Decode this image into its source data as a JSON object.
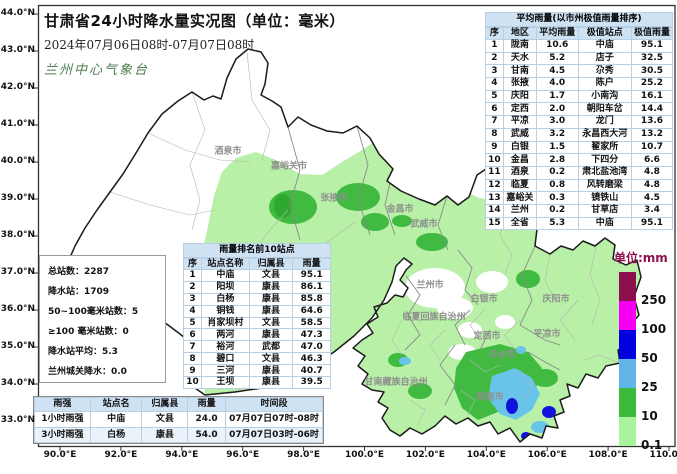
{
  "header": {
    "title": "甘肃省24小时降水量实况图（单位：毫米）",
    "date_range": "2024年07月06日08时-07月07日08时",
    "agency": "兰州中心气象台"
  },
  "avg_table": {
    "title": "平均雨量(以市州极值雨量排序)",
    "columns": [
      "序",
      "地区",
      "平均雨量",
      "极值站点",
      "极值雨量"
    ],
    "rows": [
      [
        "1",
        "陇南",
        "10.6",
        "中庙",
        "95.1"
      ],
      [
        "2",
        "天水",
        "5.2",
        "店子",
        "32.5"
      ],
      [
        "3",
        "甘南",
        "4.5",
        "尕秀",
        "30.5"
      ],
      [
        "4",
        "张掖",
        "4.0",
        "陈户",
        "25.2"
      ],
      [
        "5",
        "庆阳",
        "1.7",
        "小南沟",
        "16.1"
      ],
      [
        "6",
        "定西",
        "2.0",
        "朝阳车岔",
        "14.4"
      ],
      [
        "7",
        "平凉",
        "3.0",
        "龙门",
        "13.6"
      ],
      [
        "8",
        "武威",
        "3.2",
        "永昌西大河",
        "13.2"
      ],
      [
        "9",
        "白银",
        "1.5",
        "翟家所",
        "10.7"
      ],
      [
        "10",
        "金昌",
        "2.8",
        "下四分",
        "6.6"
      ],
      [
        "11",
        "酒泉",
        "0.2",
        "肃北盐池湾",
        "4.8"
      ],
      [
        "12",
        "临夏",
        "0.8",
        "风转磨梁",
        "4.8"
      ],
      [
        "13",
        "嘉峪关",
        "0.3",
        "镜铁山",
        "4.5"
      ],
      [
        "14",
        "兰州",
        "0.2",
        "甘草店",
        "3.4"
      ],
      [
        "15",
        "全省",
        "5.3",
        "中庙",
        "95.1"
      ]
    ]
  },
  "stats_box": {
    "lines": [
      "总站数：2287",
      "降水站：1709",
      "50~100毫米站数：5",
      "≥100 毫米站数：0",
      "降水站平均：5.3",
      "兰州城关降水：0.0"
    ]
  },
  "top10_table": {
    "title": "雨量排名前10站点",
    "columns": [
      "序",
      "站点名称",
      "归属县",
      "雨量"
    ],
    "rows": [
      [
        "1",
        "中庙",
        "文县",
        "95.1"
      ],
      [
        "2",
        "阳坝",
        "康县",
        "86.1"
      ],
      [
        "3",
        "白杨",
        "康县",
        "85.8"
      ],
      [
        "4",
        "铜钱",
        "康县",
        "64.6"
      ],
      [
        "5",
        "肖家坝村",
        "文县",
        "58.5"
      ],
      [
        "6",
        "两河",
        "康县",
        "47.3"
      ],
      [
        "7",
        "裕河",
        "武都",
        "47.0"
      ],
      [
        "8",
        "碧口",
        "文县",
        "46.3"
      ],
      [
        "9",
        "三河",
        "康县",
        "40.7"
      ],
      [
        "10",
        "王坝",
        "康县",
        "39.5"
      ]
    ]
  },
  "intensity_table": {
    "columns": [
      "雨强",
      "站点名",
      "归属县",
      "雨量",
      "时间段"
    ],
    "rows": [
      [
        "1小时雨强",
        "中庙",
        "文县",
        "24.0",
        "07月07日07时-08时"
      ],
      [
        "3小时雨强",
        "白杨",
        "康县",
        "54.0",
        "07月07日03时-06时"
      ]
    ]
  },
  "legend": {
    "title": "单位:mm",
    "levels": [
      {
        "label": "250",
        "color": "#8e0f4e"
      },
      {
        "label": "100",
        "color": "#f500f5"
      },
      {
        "label": "50",
        "color": "#0000df"
      },
      {
        "label": "25",
        "color": "#62b5e9"
      },
      {
        "label": "10",
        "color": "#3cba3c"
      },
      {
        "label": "0.1",
        "color": "#a9f29e"
      }
    ]
  },
  "axes": {
    "lat": [
      "44.0°N",
      "43.0°N",
      "42.0°N",
      "41.0°N",
      "40.0°N",
      "39.0°N",
      "38.0°N",
      "37.0°N",
      "36.0°N",
      "35.0°N",
      "34.0°N",
      "33.0°N"
    ],
    "lon": [
      "90.0°E",
      "92.0°E",
      "94.0°E",
      "96.0°E",
      "98.0°E",
      "100.0°E",
      "102.0°E",
      "104.0°E",
      "106.0°E",
      "108.0°E",
      "110.0°E"
    ]
  },
  "map": {
    "region_name": "甘肃省",
    "labels": [
      "酒泉市",
      "嘉峪关市",
      "张掖市",
      "金昌市",
      "武威市",
      "兰州市",
      "白银市",
      "临夏回族自治州",
      "甘南藏族自治州",
      "定西市",
      "平凉市",
      "庆阳市",
      "天水市",
      "陇南市"
    ],
    "fill_colors": {
      "none": "#ffffff",
      "light": "#b7f0a6",
      "medium": "#41ba41",
      "heavy": "#68c4e8",
      "storm": "#1212dd"
    }
  }
}
